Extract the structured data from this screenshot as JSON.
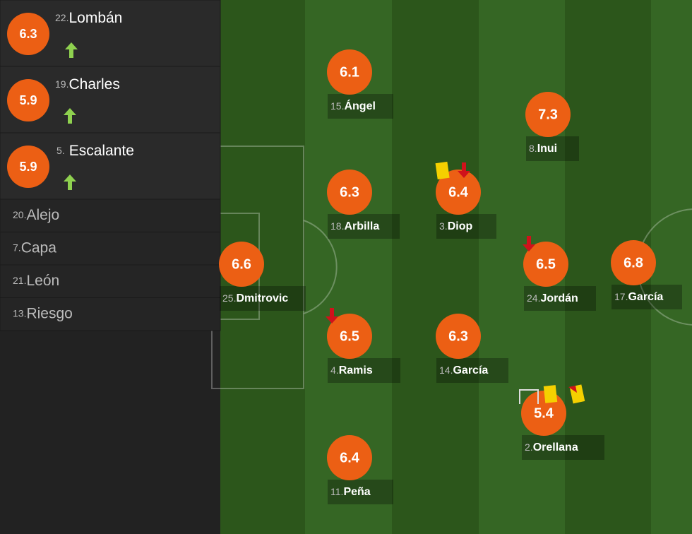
{
  "substitutes": [
    {
      "rating": 6.3,
      "number": "22.",
      "name": "Lombán"
    },
    {
      "rating": 5.9,
      "number": "19.",
      "name": "Charles"
    },
    {
      "rating": 5.9,
      "number": "5.",
      "name": "Escalante"
    }
  ],
  "bench": [
    {
      "number": "20.",
      "name": "Alejo"
    },
    {
      "number": "7.",
      "name": "Capa"
    },
    {
      "number": "21.",
      "name": "León"
    },
    {
      "number": "13.",
      "name": "Riesgo"
    }
  ],
  "players": [
    {
      "rating": 6.1,
      "number": "15.",
      "name": "Ángel"
    },
    {
      "rating": 7.3,
      "number": "8.",
      "name": "Inui"
    },
    {
      "rating": 6.3,
      "number": "18.",
      "name": "Arbilla"
    },
    {
      "rating": 6.4,
      "number": "3.",
      "name": "Diop"
    },
    {
      "rating": 6.5,
      "number": "24.",
      "name": "Jordán"
    },
    {
      "rating": 6.8,
      "number": "17.",
      "name": "García"
    },
    {
      "rating": 6.6,
      "number": "25.",
      "name": "Dmitrovic"
    },
    {
      "rating": 6.5,
      "number": "4.",
      "name": "Ramis"
    },
    {
      "rating": 6.3,
      "number": "14.",
      "name": "García"
    },
    {
      "rating": 5.4,
      "number": "2.",
      "name": "Orellana"
    },
    {
      "rating": 6.4,
      "number": "11.",
      "name": "Peña"
    }
  ]
}
